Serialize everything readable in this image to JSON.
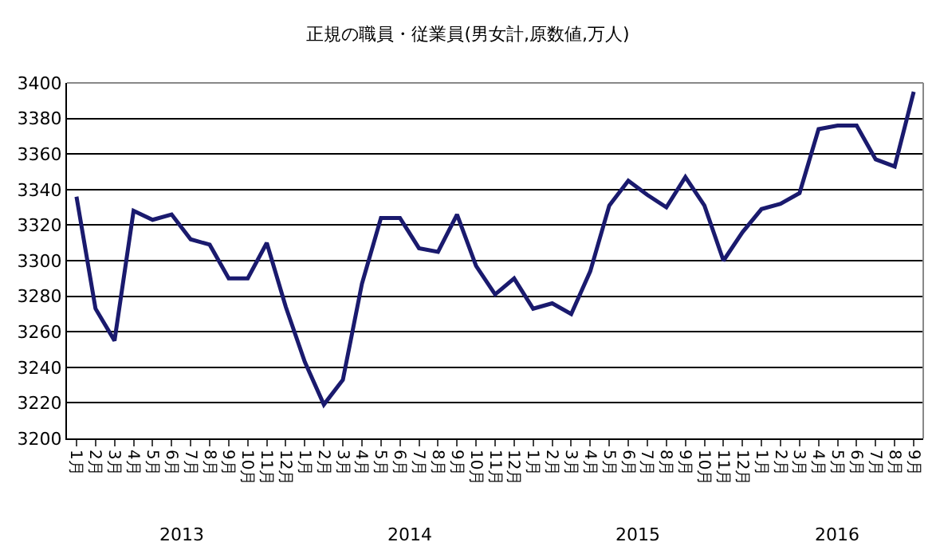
{
  "chart_data": {
    "type": "line",
    "title": "正規の職員・従業員(男女計,原数値,万人)",
    "categories": [
      "1月",
      "2月",
      "3月",
      "4月",
      "5月",
      "6月",
      "7月",
      "8月",
      "9月",
      "10月",
      "11月",
      "12月",
      "1月",
      "2月",
      "3月",
      "4月",
      "5月",
      "6月",
      "7月",
      "8月",
      "9月",
      "10月",
      "11月",
      "12月",
      "1月",
      "2月",
      "3月",
      "4月",
      "5月",
      "6月",
      "7月",
      "8月",
      "9月",
      "10月",
      "11月",
      "12月",
      "1月",
      "2月",
      "3月",
      "4月",
      "5月",
      "6月",
      "7月",
      "8月",
      "9月"
    ],
    "series": [
      {
        "color": "#1a1a6e",
        "values": [
          3336,
          3273,
          3255,
          3328,
          3323,
          3326,
          3312,
          3309,
          3290,
          3290,
          3310,
          3274,
          3243,
          3219,
          3233,
          3287,
          3324,
          3324,
          3307,
          3305,
          3326,
          3297,
          3281,
          3290,
          3273,
          3276,
          3270,
          3294,
          3331,
          3345,
          3337,
          3330,
          3347,
          3331,
          3300,
          3316,
          3329,
          3332,
          3338,
          3374,
          3376,
          3376,
          3357,
          3353,
          3395
        ]
      }
    ],
    "annotations": [
      "2013",
      "2014",
      "2015",
      "2016"
    ],
    "ylim": [
      3200,
      3400
    ],
    "yticks": [
      3200,
      3220,
      3240,
      3260,
      3280,
      3300,
      3320,
      3340,
      3360,
      3380,
      3400
    ],
    "grid": "y",
    "legend": false,
    "marker": "none",
    "line_style": "solid"
  }
}
